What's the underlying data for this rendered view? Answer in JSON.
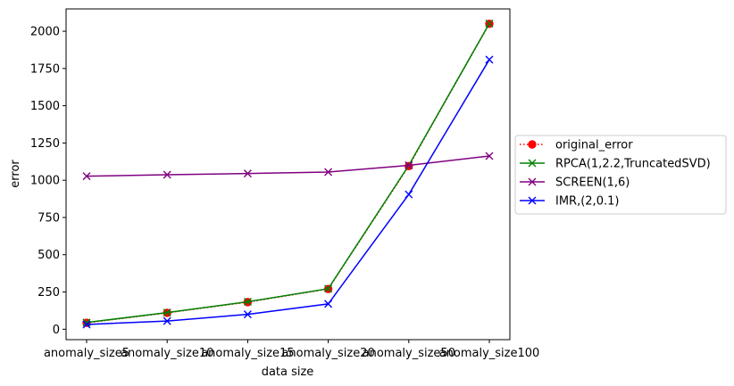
{
  "chart_data": {
    "type": "line",
    "title": "",
    "xlabel": "data size",
    "ylabel": "error",
    "categories": [
      "anomaly_size5",
      "anomaly_size10",
      "anomaly_size15",
      "anomaly_size20",
      "anomaly_size50",
      "anomaly_size100"
    ],
    "ylim": [
      -70,
      2150
    ],
    "yticks": [
      0,
      250,
      500,
      750,
      1000,
      1250,
      1500,
      1750,
      2000
    ],
    "grid": false,
    "legend_position": "center-right, outside plot",
    "series": [
      {
        "name": "original_error",
        "color": "#ff0000",
        "line_style": "dotted",
        "marker": "circle",
        "values": [
          43,
          110,
          182,
          270,
          1095,
          2050
        ]
      },
      {
        "name": "RPCA(1,2.2,TruncatedSVD)",
        "color": "#008000",
        "line_style": "solid",
        "marker": "x",
        "values": [
          45,
          112,
          184,
          272,
          1100,
          2052
        ]
      },
      {
        "name": "SCREEN(1,6)",
        "color": "#800080",
        "line_style": "solid",
        "marker": "x",
        "values": [
          1027,
          1037,
          1045,
          1055,
          1100,
          1163
        ]
      },
      {
        "name": "IMR,(2,0.1)",
        "color": "#0000ff",
        "line_style": "solid",
        "marker": "x",
        "values": [
          32,
          55,
          100,
          170,
          905,
          1810
        ]
      }
    ]
  }
}
